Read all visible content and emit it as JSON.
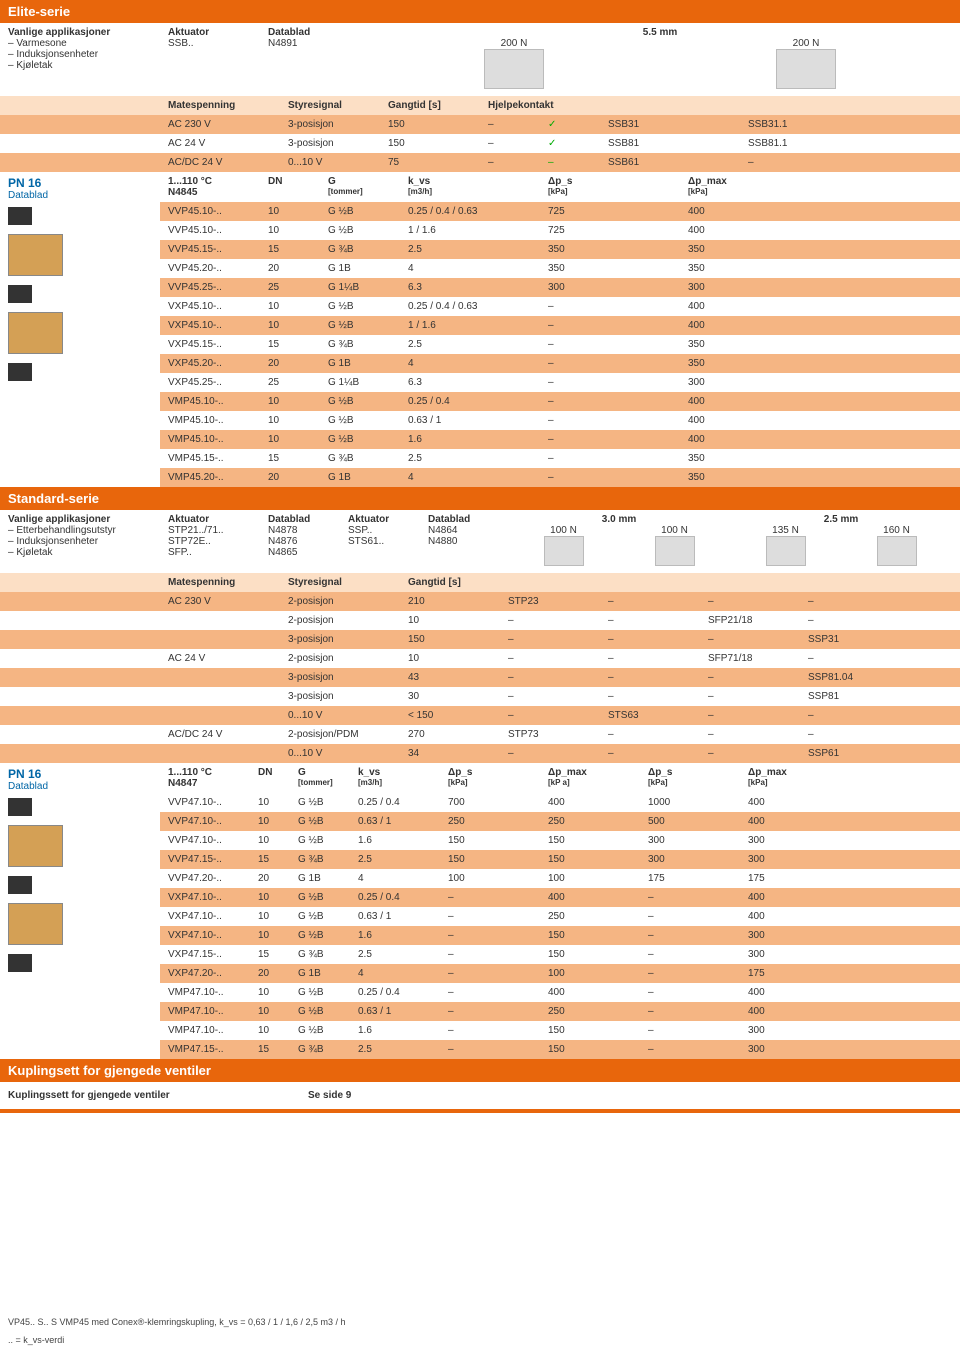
{
  "elite": {
    "title": "Elite-serie",
    "apps_header": "Vanlige applikasjoner",
    "apps": [
      "Varmesone",
      "Induksjonsenheter",
      "Kjøletak"
    ],
    "actuator_header": "Aktuator",
    "actuator": "SSB..",
    "datasheet_header": "Datablad",
    "datasheet": "N4891",
    "mm_header": "5.5 mm",
    "force1": "200 N",
    "force2": "200 N",
    "matespenning": "Matespenning",
    "styresignal": "Styresignal",
    "gangtid": "Gangtid [s]",
    "hjelpekontakt": "Hjelpekontakt",
    "mate_rows": [
      {
        "v": "AC 230 V",
        "s": "3-posisjon",
        "g": "150",
        "h": "–",
        "c": "✓",
        "m1": "SSB31",
        "m2": "SSB31.1"
      },
      {
        "v": "AC 24 V",
        "s": "3-posisjon",
        "g": "150",
        "h": "–",
        "c": "✓",
        "m1": "SSB81",
        "m2": "SSB81.1"
      },
      {
        "v": "AC/DC 24 V",
        "s": "0...10 V",
        "g": "75",
        "h": "–",
        "c": "–",
        "m1": "SSB61",
        "m2": "–"
      }
    ],
    "pn_label": "PN 16",
    "pn_datasheet_label": "Datablad",
    "pn_range": "1...110 °C",
    "pn_datasheet": "N4845",
    "dn_header": "DN",
    "g_header": "G",
    "g_sub": "[tommer]",
    "kvs_header": "k_vs",
    "kvs_sub": "[m3/h]",
    "dps_header": "Δp_s",
    "dps_sub": "[kPa]",
    "dpmax_header": "Δp_max",
    "dpmax_sub": "[kPa]",
    "valve_rows": [
      {
        "bg": "o",
        "p": "VVP45.10-..",
        "dn": "10",
        "g": "G ½B",
        "k": "0.25 / 0.4 / 0.63",
        "dps": "725",
        "dpm": "400"
      },
      {
        "bg": "w",
        "p": "VVP45.10-..",
        "dn": "10",
        "g": "G ½B",
        "k": "1 / 1.6",
        "dps": "725",
        "dpm": "400"
      },
      {
        "bg": "o",
        "p": "VVP45.15-..",
        "dn": "15",
        "g": "G ¾B",
        "k": "2.5",
        "dps": "350",
        "dpm": "350"
      },
      {
        "bg": "w",
        "p": "VVP45.20-..",
        "dn": "20",
        "g": "G 1B",
        "k": "4",
        "dps": "350",
        "dpm": "350"
      },
      {
        "bg": "o",
        "p": "VVP45.25-..",
        "dn": "25",
        "g": "G 1¼B",
        "k": "6.3",
        "dps": "300",
        "dpm": "300"
      },
      {
        "bg": "w",
        "p": "VXP45.10-..",
        "dn": "10",
        "g": "G ½B",
        "k": "0.25 / 0.4 / 0.63",
        "dps": "–",
        "dpm": "400"
      },
      {
        "bg": "o",
        "p": "VXP45.10-..",
        "dn": "10",
        "g": "G ½B",
        "k": "1 / 1.6",
        "dps": "–",
        "dpm": "400"
      },
      {
        "bg": "w",
        "p": "VXP45.15-..",
        "dn": "15",
        "g": "G ¾B",
        "k": "2.5",
        "dps": "–",
        "dpm": "350"
      },
      {
        "bg": "o",
        "p": "VXP45.20-..",
        "dn": "20",
        "g": "G 1B",
        "k": "4",
        "dps": "–",
        "dpm": "350"
      },
      {
        "bg": "w",
        "p": "VXP45.25-..",
        "dn": "25",
        "g": "G 1¼B",
        "k": "6.3",
        "dps": "–",
        "dpm": "300"
      },
      {
        "bg": "o",
        "p": "VMP45.10-..",
        "dn": "10",
        "g": "G ½B",
        "k": "0.25 / 0.4",
        "dps": "–",
        "dpm": "400"
      },
      {
        "bg": "w",
        "p": "VMP45.10-..",
        "dn": "10",
        "g": "G ½B",
        "k": "0.63 / 1",
        "dps": "–",
        "dpm": "400"
      },
      {
        "bg": "o",
        "p": "VMP45.10-..",
        "dn": "10",
        "g": "G ½B",
        "k": "1.6",
        "dps": "–",
        "dpm": "400"
      },
      {
        "bg": "w",
        "p": "VMP45.15-..",
        "dn": "15",
        "g": "G ¾B",
        "k": "2.5",
        "dps": "–",
        "dpm": "350"
      },
      {
        "bg": "o",
        "p": "VMP45.20-..",
        "dn": "20",
        "g": "G 1B",
        "k": "4",
        "dps": "–",
        "dpm": "350"
      }
    ]
  },
  "standard": {
    "title": "Standard-serie",
    "apps_header": "Vanlige applikasjoner",
    "apps": [
      "Etterbehandlingsutstyr",
      "Induksjonsenheter",
      "Kjøletak"
    ],
    "actuator_header": "Aktuator",
    "datasheet_header": "Datablad",
    "act_rows": [
      {
        "a": "STP21../71..",
        "d": "N4878"
      },
      {
        "a": "STP72E..",
        "d": "N4876"
      },
      {
        "a": "SFP..",
        "d": "N4865"
      }
    ],
    "act2_rows": [
      {
        "a": "SSP..",
        "d": "N4864"
      },
      {
        "a": "STS61..",
        "d": "N4880"
      }
    ],
    "mm1": "3.0 mm",
    "mm2": "2.5 mm",
    "forces": [
      "100 N",
      "100 N",
      "135 N",
      "160 N"
    ],
    "matespenning": "Matespenning",
    "styresignal": "Styresignal",
    "gangtid": "Gangtid [s]",
    "mate_rows": [
      {
        "v": "AC 230 V",
        "s": "2-posisjon",
        "g": "210",
        "c1": "STP23",
        "c2": "–",
        "c3": "–",
        "c4": "–"
      },
      {
        "v": "",
        "s": "2-posisjon",
        "g": "10",
        "c1": "–",
        "c2": "–",
        "c3": "SFP21/18",
        "c4": "–"
      },
      {
        "v": "",
        "s": "3-posisjon",
        "g": "150",
        "c1": "–",
        "c2": "–",
        "c3": "–",
        "c4": "SSP31"
      },
      {
        "v": "AC 24 V",
        "s": "2-posisjon",
        "g": "10",
        "c1": "–",
        "c2": "–",
        "c3": "SFP71/18",
        "c4": "–"
      },
      {
        "v": "",
        "s": "3-posisjon",
        "g": "43",
        "c1": "–",
        "c2": "–",
        "c3": "–",
        "c4": "SSP81.04"
      },
      {
        "v": "",
        "s": "3-posisjon",
        "g": "30",
        "c1": "–",
        "c2": "–",
        "c3": "–",
        "c4": "SSP81"
      },
      {
        "v": "",
        "s": "0...10 V",
        "g": "< 150",
        "c1": "–",
        "c2": "STS63",
        "c3": "–",
        "c4": "–"
      },
      {
        "v": "AC/DC 24 V",
        "s": "2-posisjon/PDM",
        "g": "270",
        "c1": "STP73",
        "c2": "–",
        "c3": "–",
        "c4": "–"
      },
      {
        "v": "",
        "s": "0...10 V",
        "g": "34",
        "c1": "–",
        "c2": "–",
        "c3": "–",
        "c4": "SSP61"
      }
    ],
    "pn_label": "PN 16",
    "pn_datasheet_label": "Datablad",
    "pn_range": "1...110 °C",
    "pn_datasheet": "N4847",
    "dn_header": "DN",
    "g_header": "G",
    "g_sub": "[tommer]",
    "kvs_header": "k_vs",
    "kvs_sub": "[m3/h]",
    "dps_header": "Δp_s",
    "dps_sub": "[kPa]",
    "dpmax_header": "Δp_max",
    "dpmax_sub": "[kP a]",
    "dps2_header": "Δp_s",
    "dps2_sub": "[kPa]",
    "dpmax2_header": "Δp_max",
    "dpmax2_sub": "[kPa]",
    "valve_rows": [
      {
        "bg": "w",
        "p": "VVP47.10-..",
        "dn": "10",
        "g": "G ½B",
        "k": "0.25 / 0.4",
        "a": "700",
        "b": "400",
        "c": "1000",
        "d": "400"
      },
      {
        "bg": "o",
        "p": "VVP47.10-..",
        "dn": "10",
        "g": "G ½B",
        "k": "0.63 / 1",
        "a": "250",
        "b": "250",
        "c": "500",
        "d": "400"
      },
      {
        "bg": "w",
        "p": "VVP47.10-..",
        "dn": "10",
        "g": "G ½B",
        "k": "1.6",
        "a": "150",
        "b": "150",
        "c": "300",
        "d": "300"
      },
      {
        "bg": "o",
        "p": "VVP47.15-..",
        "dn": "15",
        "g": "G ¾B",
        "k": "2.5",
        "a": "150",
        "b": "150",
        "c": "300",
        "d": "300"
      },
      {
        "bg": "w",
        "p": "VVP47.20-..",
        "dn": "20",
        "g": "G 1B",
        "k": "4",
        "a": "100",
        "b": "100",
        "c": "175",
        "d": "175"
      },
      {
        "bg": "o",
        "p": "VXP47.10-..",
        "dn": "10",
        "g": "G ½B",
        "k": "0.25 / 0.4",
        "a": "–",
        "b": "400",
        "c": "–",
        "d": "400"
      },
      {
        "bg": "w",
        "p": "VXP47.10-..",
        "dn": "10",
        "g": "G ½B",
        "k": "0.63 / 1",
        "a": "–",
        "b": "250",
        "c": "–",
        "d": "400"
      },
      {
        "bg": "o",
        "p": "VXP47.10-..",
        "dn": "10",
        "g": "G ½B",
        "k": "1.6",
        "a": "–",
        "b": "150",
        "c": "–",
        "d": "300"
      },
      {
        "bg": "w",
        "p": "VXP47.15-..",
        "dn": "15",
        "g": "G ¾B",
        "k": "2.5",
        "a": "–",
        "b": "150",
        "c": "–",
        "d": "300"
      },
      {
        "bg": "o",
        "p": "VXP47.20-..",
        "dn": "20",
        "g": "G 1B",
        "k": "4",
        "a": "–",
        "b": "100",
        "c": "–",
        "d": "175"
      },
      {
        "bg": "w",
        "p": "VMP47.10-..",
        "dn": "10",
        "g": "G ½B",
        "k": "0.25 / 0.4",
        "a": "–",
        "b": "400",
        "c": "–",
        "d": "400"
      },
      {
        "bg": "o",
        "p": "VMP47.10-..",
        "dn": "10",
        "g": "G ½B",
        "k": "0.63 / 1",
        "a": "–",
        "b": "250",
        "c": "–",
        "d": "400"
      },
      {
        "bg": "w",
        "p": "VMP47.10-..",
        "dn": "10",
        "g": "G ½B",
        "k": "1.6",
        "a": "–",
        "b": "150",
        "c": "–",
        "d": "300"
      },
      {
        "bg": "o",
        "p": "VMP47.15-..",
        "dn": "15",
        "g": "G ¾B",
        "k": "2.5",
        "a": "–",
        "b": "150",
        "c": "–",
        "d": "300"
      }
    ]
  },
  "coupling": {
    "title": "Kuplingsett for gjengede ventiler",
    "sub": "Kuplingssett for gjengede ventiler",
    "see": "Se side 9"
  },
  "footnotes": {
    "line1": "VP45.. S.. S VMP45 med Conex®-klemringskupling, k_vs = 0,63 / 1 / 1,6 / 2,5 m3 / h",
    "line2": ".. = k_vs-verdi"
  },
  "colors": {
    "orange": "#e8660c",
    "light": "#f5b583",
    "lighter": "#fcdfc5",
    "blue": "#0066a6"
  }
}
